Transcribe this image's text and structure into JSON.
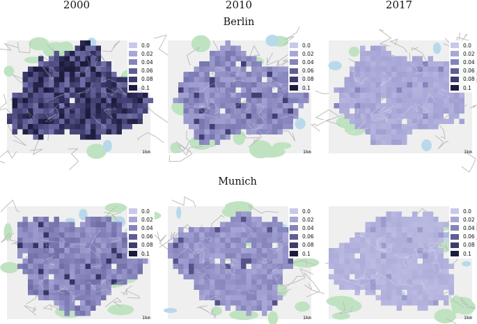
{
  "years": [
    "2000",
    "2010",
    "2017"
  ],
  "cities": [
    "Berlin",
    "Munich"
  ],
  "legend": {
    "labels": [
      "0.0",
      "0.02",
      "0.04",
      "0.06",
      "0.08",
      "0.1"
    ],
    "colors": [
      "#c8c8e9",
      "#a7a6d6",
      "#8583bb",
      "#5f5d94",
      "#3d3b6c",
      "#1c1b3c"
    ]
  },
  "scale_bar": "1km",
  "map_colors": {
    "land": "#efefef",
    "park": "#bfe3c0",
    "water": "#b8d9ec",
    "road": "#bdbdbd"
  },
  "panels": [
    {
      "city": "Berlin",
      "year": "2000",
      "density_level": 0.075
    },
    {
      "city": "Berlin",
      "year": "2010",
      "density_level": 0.035
    },
    {
      "city": "Berlin",
      "year": "2017",
      "density_level": 0.018
    },
    {
      "city": "Munich",
      "year": "2000",
      "density_level": 0.038
    },
    {
      "city": "Munich",
      "year": "2010",
      "density_level": 0.03
    },
    {
      "city": "Munich",
      "year": "2017",
      "density_level": 0.012
    }
  ]
}
